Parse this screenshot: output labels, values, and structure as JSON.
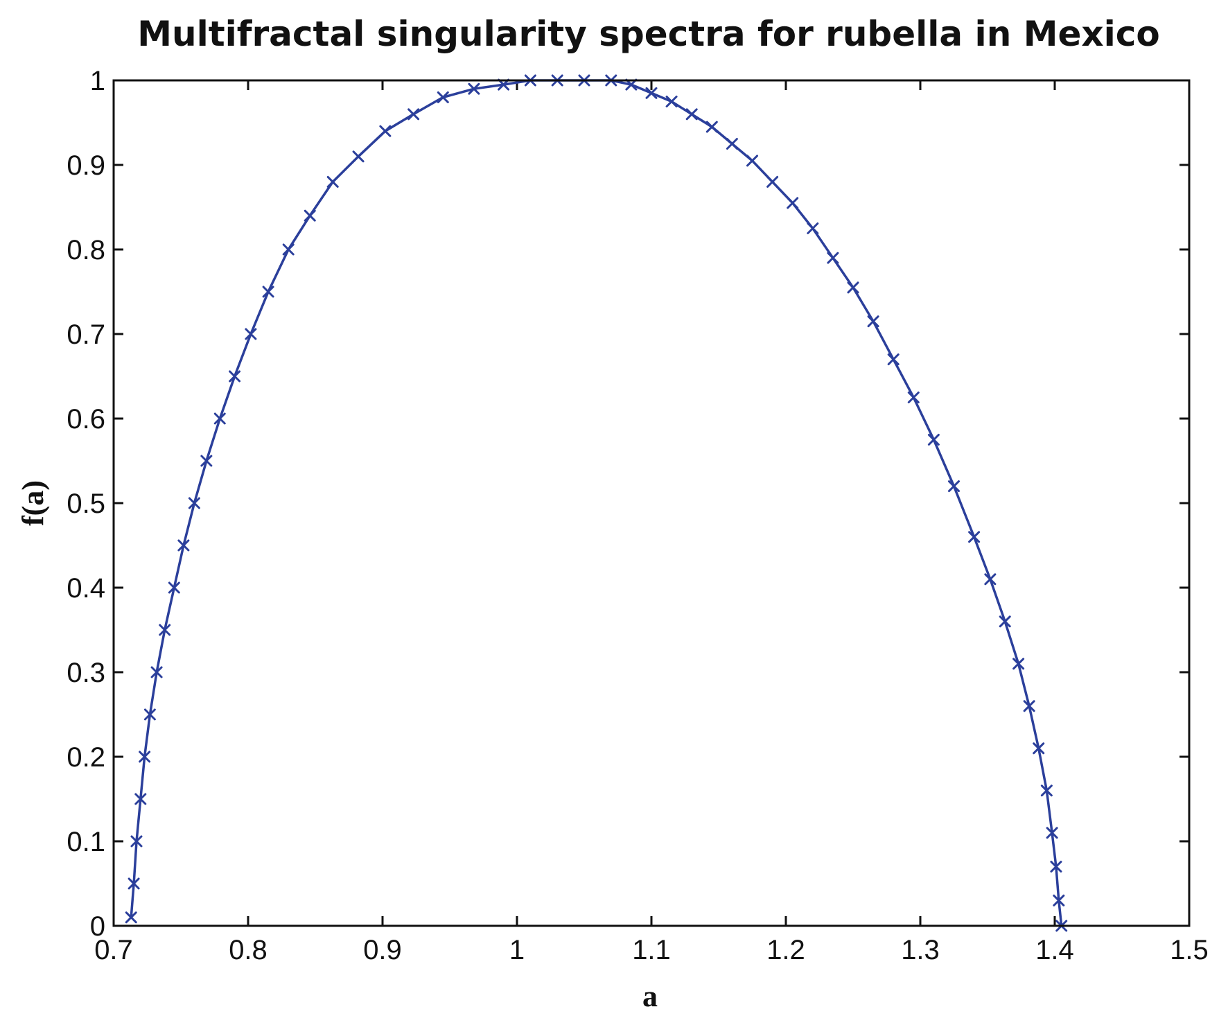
{
  "chart_data": {
    "type": "scatter",
    "title": "Multifractal singularity spectra for rubella in Mexico",
    "xlabel": "a",
    "ylabel": "f(a)",
    "xlim": [
      0.7,
      1.5
    ],
    "ylim": [
      0,
      1
    ],
    "xticks": [
      "0.7",
      "0.8",
      "0.9",
      "1",
      "1.1",
      "1.2",
      "1.3",
      "1.4",
      "1.5"
    ],
    "yticks": [
      "0",
      "0.1",
      "0.2",
      "0.3",
      "0.4",
      "0.5",
      "0.6",
      "0.7",
      "0.8",
      "0.9",
      "1"
    ],
    "grid": false,
    "legend": "none",
    "marker": "x",
    "color": "#2b3f9b",
    "series": [
      {
        "x": [
          0.713,
          0.715,
          0.717,
          0.72,
          0.723,
          0.727,
          0.732,
          0.738,
          0.745,
          0.752,
          0.76,
          0.769,
          0.779,
          0.79,
          0.802,
          0.815,
          0.83,
          0.846,
          0.863,
          0.882,
          0.902,
          0.923,
          0.945,
          0.968,
          0.99,
          1.01,
          1.03,
          1.05,
          1.07,
          1.085,
          1.1,
          1.115,
          1.13,
          1.145,
          1.16,
          1.175,
          1.19,
          1.205,
          1.22,
          1.235,
          1.25,
          1.265,
          1.28,
          1.295,
          1.31,
          1.325,
          1.34,
          1.352,
          1.363,
          1.373,
          1.381,
          1.388,
          1.394,
          1.398,
          1.401,
          1.403,
          1.405
        ],
        "y": [
          0.01,
          0.05,
          0.1,
          0.15,
          0.2,
          0.25,
          0.3,
          0.35,
          0.4,
          0.45,
          0.5,
          0.55,
          0.6,
          0.65,
          0.7,
          0.75,
          0.8,
          0.84,
          0.88,
          0.91,
          0.94,
          0.96,
          0.98,
          0.99,
          0.995,
          1.0,
          1.0,
          1.0,
          1.0,
          0.995,
          0.985,
          0.975,
          0.96,
          0.945,
          0.925,
          0.905,
          0.88,
          0.855,
          0.825,
          0.79,
          0.755,
          0.715,
          0.67,
          0.625,
          0.575,
          0.52,
          0.46,
          0.41,
          0.36,
          0.31,
          0.26,
          0.21,
          0.16,
          0.11,
          0.07,
          0.03,
          0.0
        ]
      }
    ]
  }
}
